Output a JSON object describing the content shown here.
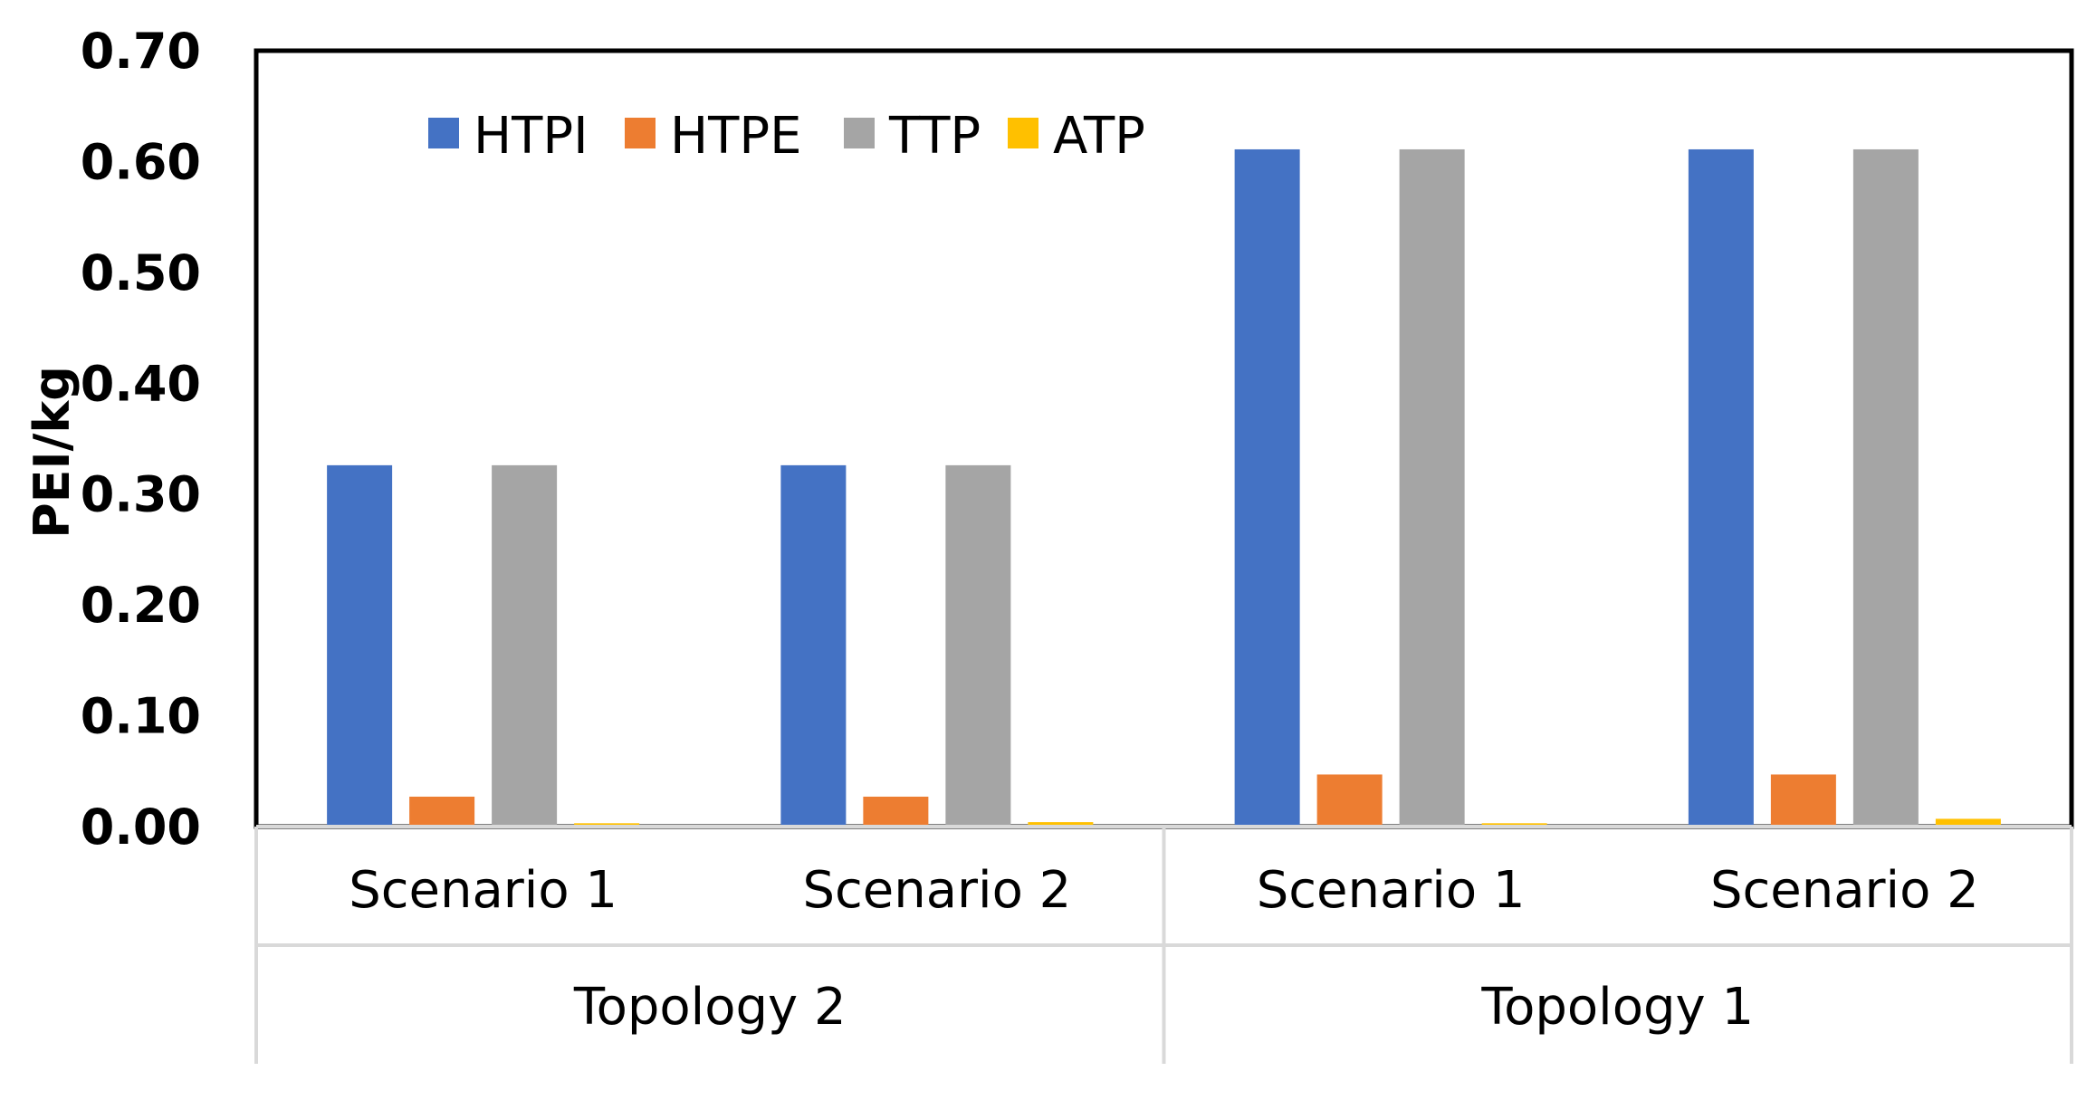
{
  "chart_data": {
    "type": "bar",
    "title": "",
    "xlabel": "",
    "ylabel": "PEI/kg",
    "ylim": [
      0,
      0.7
    ],
    "yticks": [
      "0.00",
      "0.10",
      "0.20",
      "0.30",
      "0.40",
      "0.50",
      "0.60",
      "0.70"
    ],
    "grid": false,
    "legend_position": "top-left",
    "groups": [
      {
        "label": "Topology 2",
        "categories": [
          "Scenario 1",
          "Scenario 2"
        ]
      },
      {
        "label": "Topology 1",
        "categories": [
          "Scenario 1",
          "Scenario 2"
        ]
      }
    ],
    "categories": [
      "Scenario 1",
      "Scenario 2",
      "Scenario 1",
      "Scenario 2"
    ],
    "series": [
      {
        "name": "HTPI",
        "color": "#4472C4",
        "values": [
          0.326,
          0.326,
          0.611,
          0.611
        ]
      },
      {
        "name": "HTPE",
        "color": "#ED7D31",
        "values": [
          0.027,
          0.027,
          0.047,
          0.047
        ]
      },
      {
        "name": "TTP",
        "color": "#A5A5A5",
        "values": [
          0.326,
          0.326,
          0.611,
          0.611
        ]
      },
      {
        "name": "ATP",
        "color": "#FFC000",
        "values": [
          0.003,
          0.004,
          0.003,
          0.007
        ]
      }
    ]
  }
}
